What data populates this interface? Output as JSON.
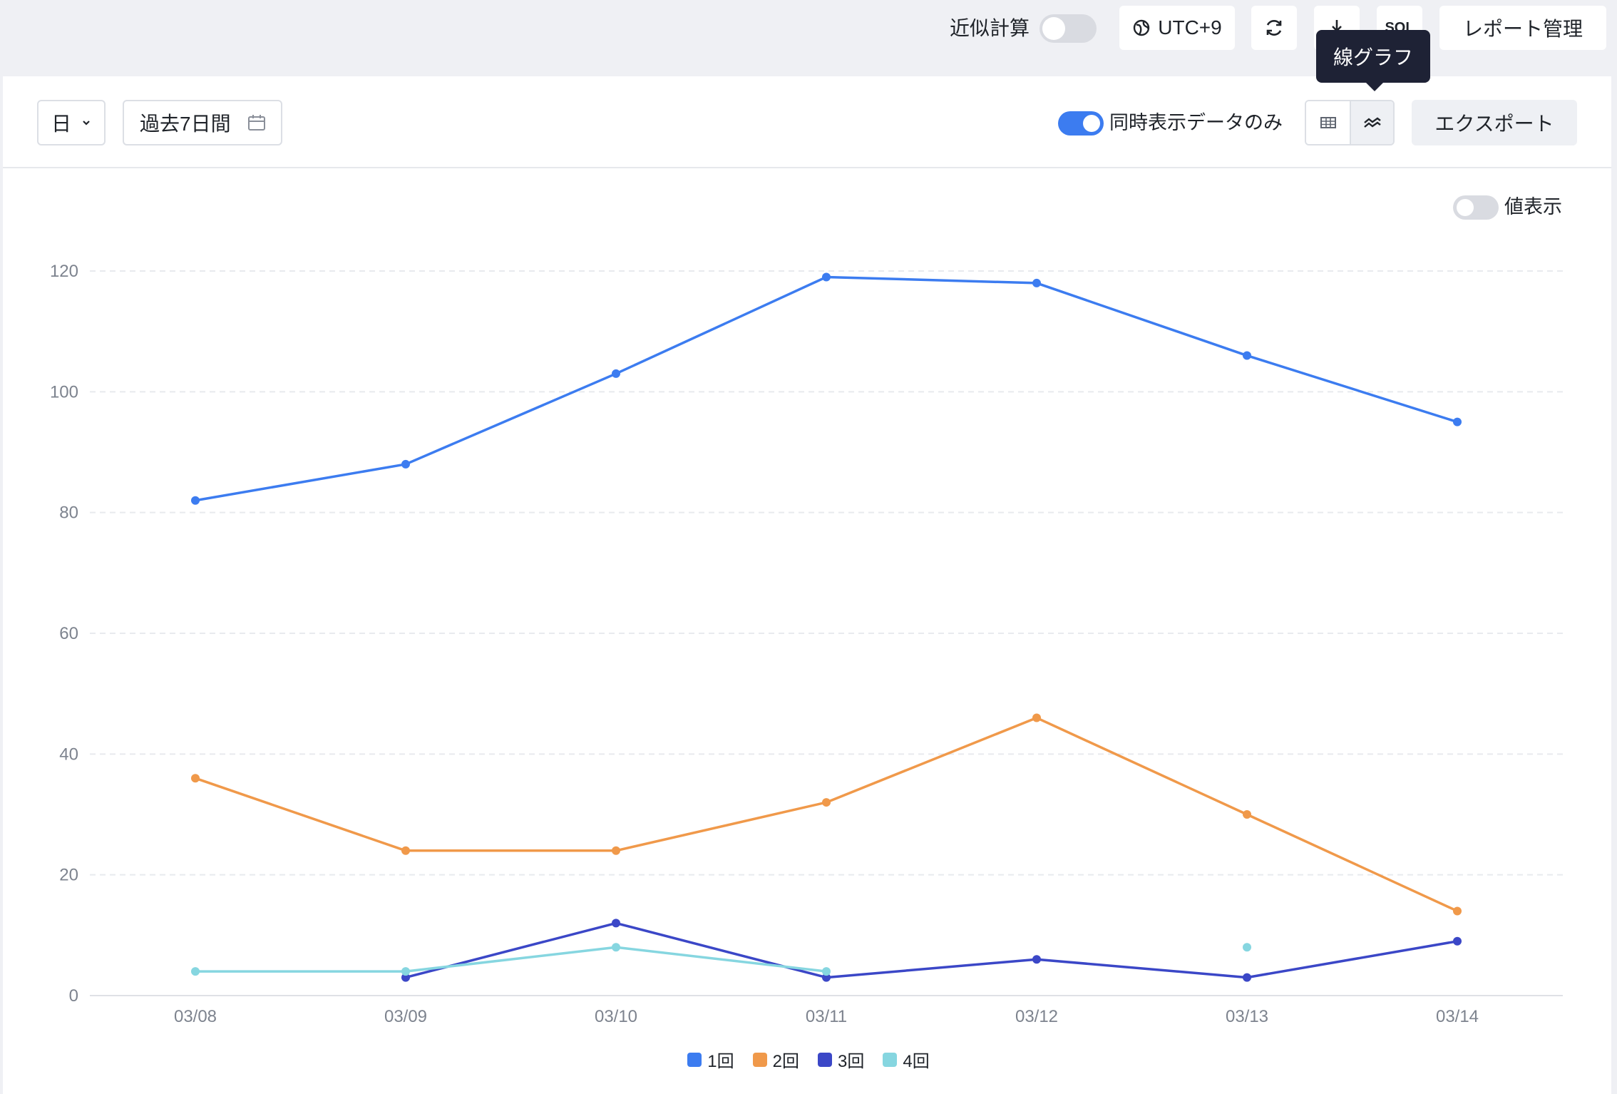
{
  "topbar": {
    "approx_label": "近似計算",
    "timezone_label": "UTC+9",
    "download_icon": "download-icon",
    "sql_label": "SQL",
    "report_manage_label": "レポート管理",
    "refresh_icon": "refresh-icon",
    "globe_icon": "globe-icon"
  },
  "tooltip": {
    "text": "線グラフ"
  },
  "toolbar": {
    "granularity": "日",
    "date_range": "過去7日間",
    "sync_toggle_label": "同時表示データのみ",
    "export_label": "エクスポート",
    "table_view_icon": "table-icon",
    "line_view_icon": "line-chart-icon",
    "calendar_icon": "calendar-icon"
  },
  "value_display_label": "値表示",
  "colors": {
    "accent": "#3c7cf0",
    "series1": "#3c7cf0",
    "series2": "#f0994a",
    "series3": "#3b47c7",
    "series4": "#86d6e0"
  },
  "chart_data": {
    "type": "line",
    "categories": [
      "03/08",
      "03/09",
      "03/10",
      "03/11",
      "03/12",
      "03/13",
      "03/14"
    ],
    "ylim": [
      0,
      120
    ],
    "yticks": [
      0,
      20,
      40,
      60,
      80,
      100,
      120
    ],
    "grid": true,
    "legend_position": "bottom",
    "series": [
      {
        "name": "1回",
        "color": "#3c7cf0",
        "values": [
          82,
          88,
          103,
          119,
          118,
          106,
          95
        ]
      },
      {
        "name": "2回",
        "color": "#f0994a",
        "values": [
          36,
          24,
          24,
          32,
          46,
          30,
          14
        ]
      },
      {
        "name": "3回",
        "color": "#3b47c7",
        "values": [
          null,
          3,
          12,
          3,
          6,
          3,
          9
        ]
      },
      {
        "name": "4回",
        "color": "#86d6e0",
        "values": [
          4,
          4,
          8,
          4,
          null,
          8,
          null
        ]
      }
    ]
  }
}
